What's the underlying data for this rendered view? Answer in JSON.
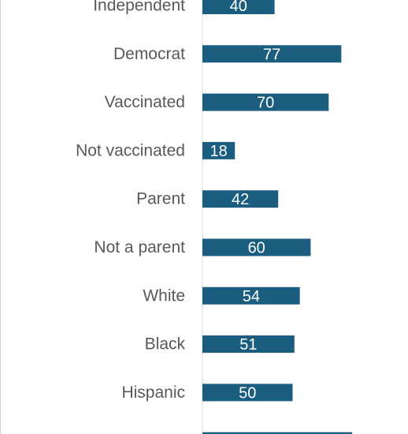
{
  "colors": {
    "bar": "#1a5d7e",
    "axis": "#d9d9d9",
    "category_text": "#595959",
    "value_text": "#ffffff"
  },
  "chart_data": {
    "type": "bar",
    "orientation": "horizontal",
    "categories": [
      "Independent",
      "Democrat",
      "Vaccinated",
      "Not vaccinated",
      "Parent",
      "Not a parent",
      "White",
      "Black",
      "Hispanic",
      ""
    ],
    "values": [
      40,
      77,
      70,
      18,
      42,
      60,
      54,
      51,
      50,
      83
    ],
    "value_labels": [
      "40",
      "77",
      "70",
      "18",
      "42",
      "60",
      "54",
      "51",
      "50",
      ""
    ],
    "xlim": [
      0,
      100
    ],
    "grid": false,
    "legend": "none"
  }
}
